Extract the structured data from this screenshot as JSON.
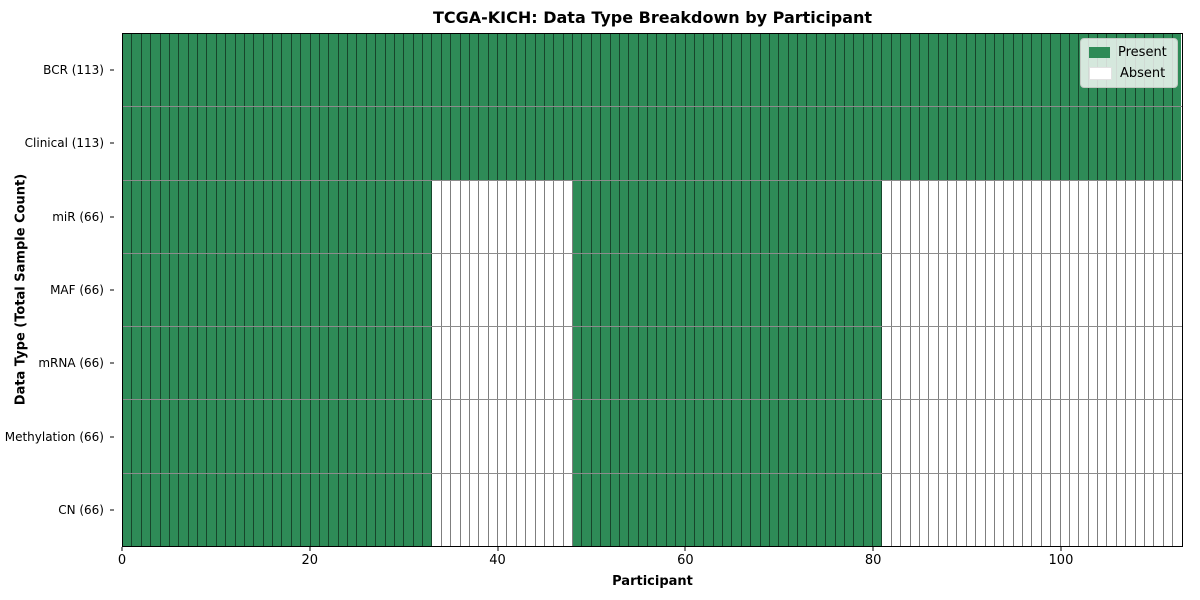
{
  "chart_data": {
    "type": "heatmap",
    "title": "TCGA-KICH: Data Type Breakdown by Participant",
    "xlabel": "Participant",
    "ylabel": "Data Type (Total Sample Count)",
    "x_range": [
      0,
      113
    ],
    "x_ticks": [
      0,
      20,
      40,
      60,
      80,
      100
    ],
    "grid": false,
    "legend_position": "upper right",
    "colors": {
      "present": "#2e8b57",
      "absent": "#ffffff"
    },
    "legend": [
      {
        "label": "Present",
        "color": "#2e8b57"
      },
      {
        "label": "Absent",
        "color": "#ffffff"
      }
    ],
    "rows": [
      {
        "label": "BCR (113)",
        "total": 113,
        "present_segments": [
          [
            0,
            113
          ]
        ]
      },
      {
        "label": "Clinical (113)",
        "total": 113,
        "present_segments": [
          [
            0,
            113
          ]
        ]
      },
      {
        "label": "miR (66)",
        "total": 66,
        "present_segments": [
          [
            0,
            33
          ],
          [
            48,
            81
          ]
        ]
      },
      {
        "label": "MAF (66)",
        "total": 66,
        "present_segments": [
          [
            0,
            33
          ],
          [
            48,
            81
          ]
        ]
      },
      {
        "label": "mRNA (66)",
        "total": 66,
        "present_segments": [
          [
            0,
            33
          ],
          [
            48,
            81
          ]
        ]
      },
      {
        "label": "Methylation (66)",
        "total": 66,
        "present_segments": [
          [
            0,
            33
          ],
          [
            48,
            81
          ]
        ]
      },
      {
        "label": "CN (66)",
        "total": 66,
        "present_segments": [
          [
            0,
            33
          ],
          [
            48,
            81
          ]
        ]
      }
    ]
  }
}
